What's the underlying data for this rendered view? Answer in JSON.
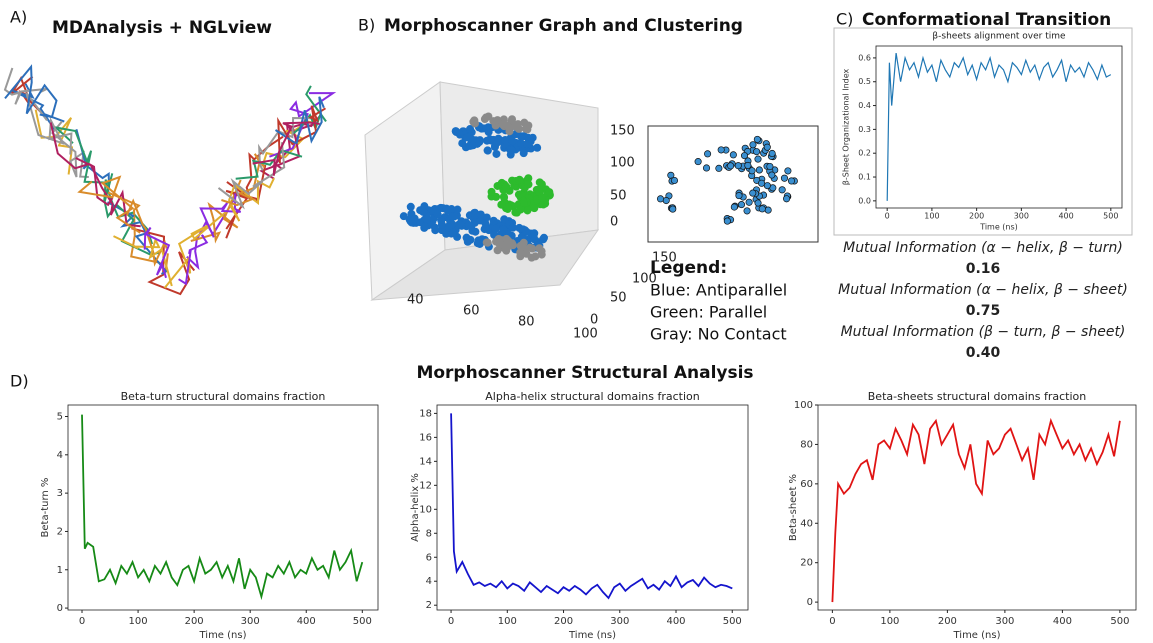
{
  "panels": {
    "a": {
      "letter": "A)",
      "title": "MDAnalysis + NGLview"
    },
    "b": {
      "letter": "B)",
      "title": "Morphoscanner Graph and Clustering",
      "z_ticks": [
        "0",
        "50",
        "100",
        "150"
      ],
      "y_ticks": [
        "0",
        "50",
        "100",
        "150"
      ],
      "x_ticks": [
        "40",
        "60",
        "80",
        "100"
      ],
      "legend": {
        "title": "Legend:",
        "items": [
          {
            "text": "Blue: Antiparallel",
            "color": "#1a6fc4"
          },
          {
            "text": "Green: Parallel",
            "color": "#2dbb2d"
          },
          {
            "text": "Gray: No Contact",
            "color": "#8a8a8a"
          }
        ]
      }
    },
    "c": {
      "letter": "C)",
      "title": "Conformational Transition",
      "mutual_information": [
        {
          "label": "Mutual Information (α − helix, β − turn)",
          "value": "0.16"
        },
        {
          "label": "Mutual Information (α − helix, β − sheet)",
          "value": "0.75"
        },
        {
          "label": "Mutual Information (β − turn, β − sheet)",
          "value": "0.40"
        }
      ]
    },
    "d": {
      "letter": "D)",
      "title": "Morphoscanner Structural Analysis"
    }
  },
  "chart_data": [
    {
      "type": "line",
      "title": "β-sheets alignment over time",
      "x_label": "Time (ns)",
      "y_label": "β-Sheet Organizational Index",
      "xlim": [
        -25,
        525
      ],
      "ylim": [
        -0.03,
        0.65
      ],
      "xticks": [
        0,
        100,
        200,
        300,
        400,
        500
      ],
      "yticks": [
        {
          "value": 0,
          "label": "0.0"
        },
        0.1,
        0.2,
        0.3,
        0.4,
        0.5,
        0.6
      ],
      "color": "#1f77b4",
      "x": [
        0,
        5,
        10,
        20,
        30,
        40,
        50,
        60,
        70,
        80,
        90,
        100,
        110,
        120,
        130,
        140,
        150,
        160,
        170,
        180,
        190,
        200,
        210,
        220,
        230,
        240,
        250,
        260,
        270,
        280,
        290,
        300,
        310,
        320,
        330,
        340,
        350,
        360,
        370,
        380,
        390,
        400,
        410,
        420,
        430,
        440,
        450,
        460,
        470,
        480,
        490,
        500
      ],
      "values": [
        0.0,
        0.58,
        0.4,
        0.62,
        0.5,
        0.6,
        0.55,
        0.58,
        0.52,
        0.6,
        0.54,
        0.57,
        0.5,
        0.59,
        0.55,
        0.52,
        0.58,
        0.56,
        0.6,
        0.53,
        0.57,
        0.51,
        0.58,
        0.55,
        0.6,
        0.52,
        0.57,
        0.55,
        0.5,
        0.58,
        0.56,
        0.53,
        0.59,
        0.54,
        0.57,
        0.51,
        0.56,
        0.58,
        0.52,
        0.55,
        0.59,
        0.5,
        0.57,
        0.54,
        0.56,
        0.52,
        0.58,
        0.55,
        0.51,
        0.57,
        0.52,
        0.53
      ]
    },
    {
      "type": "line",
      "title": "Beta-turn structural domains fraction",
      "x_label": "Time (ns)",
      "y_label": "Beta-turn %",
      "xlim": [
        -25,
        528
      ],
      "ylim": [
        -0.05,
        5.3
      ],
      "xticks": [
        0,
        100,
        200,
        300,
        400,
        500
      ],
      "yticks": [
        0,
        1,
        2,
        3,
        4,
        5
      ],
      "color": "#168a16",
      "x": [
        0,
        5,
        10,
        20,
        30,
        40,
        50,
        60,
        70,
        80,
        90,
        100,
        110,
        120,
        130,
        140,
        150,
        160,
        170,
        180,
        190,
        200,
        210,
        220,
        230,
        240,
        250,
        260,
        270,
        280,
        290,
        300,
        310,
        320,
        330,
        340,
        350,
        360,
        370,
        380,
        390,
        400,
        410,
        420,
        430,
        440,
        450,
        460,
        470,
        480,
        490,
        500
      ],
      "values": [
        5.05,
        1.55,
        1.7,
        1.6,
        0.7,
        0.75,
        1.0,
        0.65,
        1.1,
        0.9,
        1.2,
        0.8,
        1.0,
        0.7,
        1.1,
        0.9,
        1.2,
        0.8,
        0.6,
        1.0,
        1.1,
        0.7,
        1.3,
        0.9,
        1.0,
        1.2,
        0.8,
        1.1,
        0.7,
        1.3,
        0.5,
        1.0,
        0.8,
        0.3,
        0.9,
        0.8,
        1.1,
        0.9,
        1.2,
        0.8,
        1.0,
        0.9,
        1.3,
        1.0,
        1.1,
        0.8,
        1.5,
        1.0,
        1.2,
        1.5,
        0.7,
        1.2
      ]
    },
    {
      "type": "line",
      "title": "Alpha-helix structural domains fraction",
      "x_label": "Time (ns)",
      "y_label": "Alpha-helix %",
      "xlim": [
        -25,
        528
      ],
      "ylim": [
        1.6,
        18.7
      ],
      "xticks": [
        0,
        100,
        200,
        300,
        400,
        500
      ],
      "yticks": [
        2,
        4,
        6,
        8,
        10,
        12,
        14,
        16,
        18
      ],
      "color": "#1414cc",
      "x": [
        0,
        5,
        10,
        20,
        30,
        40,
        50,
        60,
        70,
        80,
        90,
        100,
        110,
        120,
        130,
        140,
        150,
        160,
        170,
        180,
        190,
        200,
        210,
        220,
        230,
        240,
        250,
        260,
        270,
        280,
        290,
        300,
        310,
        320,
        330,
        340,
        350,
        360,
        370,
        380,
        390,
        400,
        410,
        420,
        430,
        440,
        450,
        460,
        470,
        480,
        490,
        500
      ],
      "values": [
        18.0,
        6.5,
        4.8,
        5.6,
        4.6,
        3.7,
        3.9,
        3.6,
        3.8,
        3.5,
        4.0,
        3.4,
        3.8,
        3.6,
        3.2,
        3.9,
        3.5,
        3.1,
        3.6,
        3.3,
        3.0,
        3.5,
        3.2,
        3.6,
        3.3,
        2.9,
        3.4,
        3.7,
        3.1,
        2.6,
        3.5,
        3.8,
        3.2,
        3.6,
        3.9,
        4.2,
        3.4,
        3.7,
        3.3,
        4.0,
        3.6,
        4.4,
        3.5,
        3.9,
        4.1,
        3.6,
        4.3,
        3.8,
        3.5,
        3.7,
        3.6,
        3.4
      ]
    },
    {
      "type": "line",
      "title": "Beta-sheets structural domains fraction",
      "x_label": "Time (ns)",
      "y_label": "Beta-sheet %",
      "xlim": [
        -25,
        528
      ],
      "ylim": [
        -4,
        100
      ],
      "xticks": [
        0,
        100,
        200,
        300,
        400,
        500
      ],
      "yticks": [
        0,
        20,
        40,
        60,
        80,
        100
      ],
      "color": "#e01414",
      "x": [
        0,
        5,
        10,
        20,
        30,
        40,
        50,
        60,
        70,
        80,
        90,
        100,
        110,
        120,
        130,
        140,
        150,
        160,
        170,
        180,
        190,
        200,
        210,
        220,
        230,
        240,
        250,
        260,
        270,
        280,
        290,
        300,
        310,
        320,
        330,
        340,
        350,
        360,
        370,
        380,
        390,
        400,
        410,
        420,
        430,
        440,
        450,
        460,
        470,
        480,
        490,
        500
      ],
      "values": [
        0,
        35,
        60,
        55,
        58,
        65,
        70,
        72,
        62,
        80,
        82,
        78,
        88,
        82,
        75,
        90,
        85,
        70,
        88,
        92,
        80,
        85,
        90,
        75,
        68,
        80,
        60,
        55,
        82,
        75,
        78,
        85,
        88,
        80,
        72,
        78,
        62,
        85,
        80,
        92,
        85,
        78,
        82,
        75,
        80,
        72,
        78,
        70,
        76,
        85,
        74,
        92
      ]
    }
  ]
}
